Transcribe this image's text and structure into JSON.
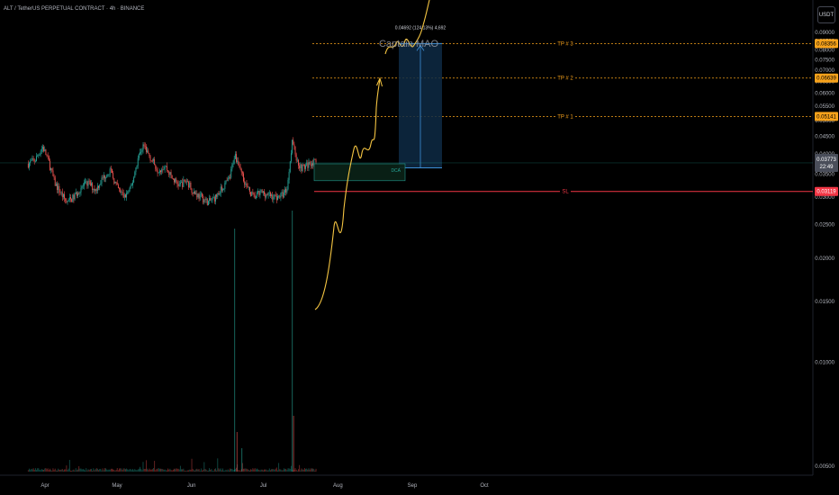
{
  "header": {
    "title": "ALT / TetherUS PERPETUAL CONTRACT · 4h · BINANCE",
    "currency_button": "USDT"
  },
  "chart_data": {
    "type": "candlestick",
    "symbol": "ALT / TetherUS PERPETUAL CONTRACT",
    "interval": "4h",
    "exchange": "BINANCE",
    "y_axis": {
      "scale": "log",
      "ticks": [
        "0.09000",
        "0.08500",
        "0.08000",
        "0.07500",
        "0.07000",
        "0.06500",
        "0.06000",
        "0.05500",
        "0.05000",
        "0.04500",
        "0.04000",
        "0.03500",
        "0.03000",
        "0.02500",
        "0.02000",
        "0.01500",
        "0.01000",
        "0.00500"
      ]
    },
    "x_axis": {
      "ticks": [
        "Apr",
        "May",
        "Jun",
        "Jul",
        "Aug",
        "Sep",
        "Oct"
      ]
    },
    "price_path": [
      [
        "Mar 25",
        0.0375
      ],
      [
        "Mar 28",
        0.0385
      ],
      [
        "Mar 31",
        0.042
      ],
      [
        "Apr 02",
        0.039
      ],
      [
        "Apr 05",
        0.033
      ],
      [
        "Apr 08",
        0.0305
      ],
      [
        "Apr 10",
        0.029
      ],
      [
        "Apr 13",
        0.03
      ],
      [
        "Apr 16",
        0.032
      ],
      [
        "Apr 19",
        0.033
      ],
      [
        "Apr 22",
        0.0315
      ],
      [
        "Apr 25",
        0.034
      ],
      [
        "Apr 28",
        0.036
      ],
      [
        "May 01",
        0.032
      ],
      [
        "May 04",
        0.03
      ],
      [
        "May 07",
        0.032
      ],
      [
        "May 10",
        0.0395
      ],
      [
        "May 12",
        0.0425
      ],
      [
        "May 15",
        0.039
      ],
      [
        "May 18",
        0.036
      ],
      [
        "May 21",
        0.037
      ],
      [
        "May 24",
        0.034
      ],
      [
        "May 27",
        0.0325
      ],
      [
        "May 30",
        0.0335
      ],
      [
        "Jun 02",
        0.031
      ],
      [
        "Jun 05",
        0.03
      ],
      [
        "Jun 08",
        0.029
      ],
      [
        "Jun 11",
        0.03
      ],
      [
        "Jun 14",
        0.032
      ],
      [
        "Jun 17",
        0.034
      ],
      [
        "Jun 19",
        0.04
      ],
      [
        "Jun 21",
        0.037
      ],
      [
        "Jun 24",
        0.032
      ],
      [
        "Jun 27",
        0.03
      ],
      [
        "Jun 30",
        0.031
      ],
      [
        "Jul 03",
        0.0305
      ],
      [
        "Jul 06",
        0.03
      ],
      [
        "Jul 09",
        0.0305
      ],
      [
        "Jul 11",
        0.032
      ],
      [
        "Jul 13",
        0.044
      ],
      [
        "Jul 15",
        0.038
      ],
      [
        "Jul 17",
        0.0365
      ],
      [
        "Jul 19",
        0.037
      ],
      [
        "Jul 21",
        0.038
      ],
      [
        "Jul 23",
        0.0375
      ]
    ],
    "annotations": {
      "watermark": "Captain MAO",
      "risk_reward_label": "0.04692 (124.13%) 4,692",
      "entry_label": "DCA",
      "levels": [
        {
          "label": "TP # 3",
          "price": "0.08356",
          "color": "#f7a21b"
        },
        {
          "label": "TP # 2",
          "price": "0.06639",
          "color": "#f7a21b"
        },
        {
          "label": "TP # 1",
          "price": "0.05141",
          "color": "#f7a21b"
        },
        {
          "label": "SL",
          "price": "0.03119",
          "color": "#f23645"
        }
      ],
      "current_price": "0.03773",
      "countdown": "22:49"
    },
    "colors": {
      "background": "#000000",
      "up": "#26a69a",
      "down": "#ef5350",
      "projection": "#f5c542",
      "target_zone": "#0e2a44",
      "target_line": "#3d8fd6",
      "tp": "#f7a21b",
      "sl": "#f23645"
    },
    "grid": false
  }
}
